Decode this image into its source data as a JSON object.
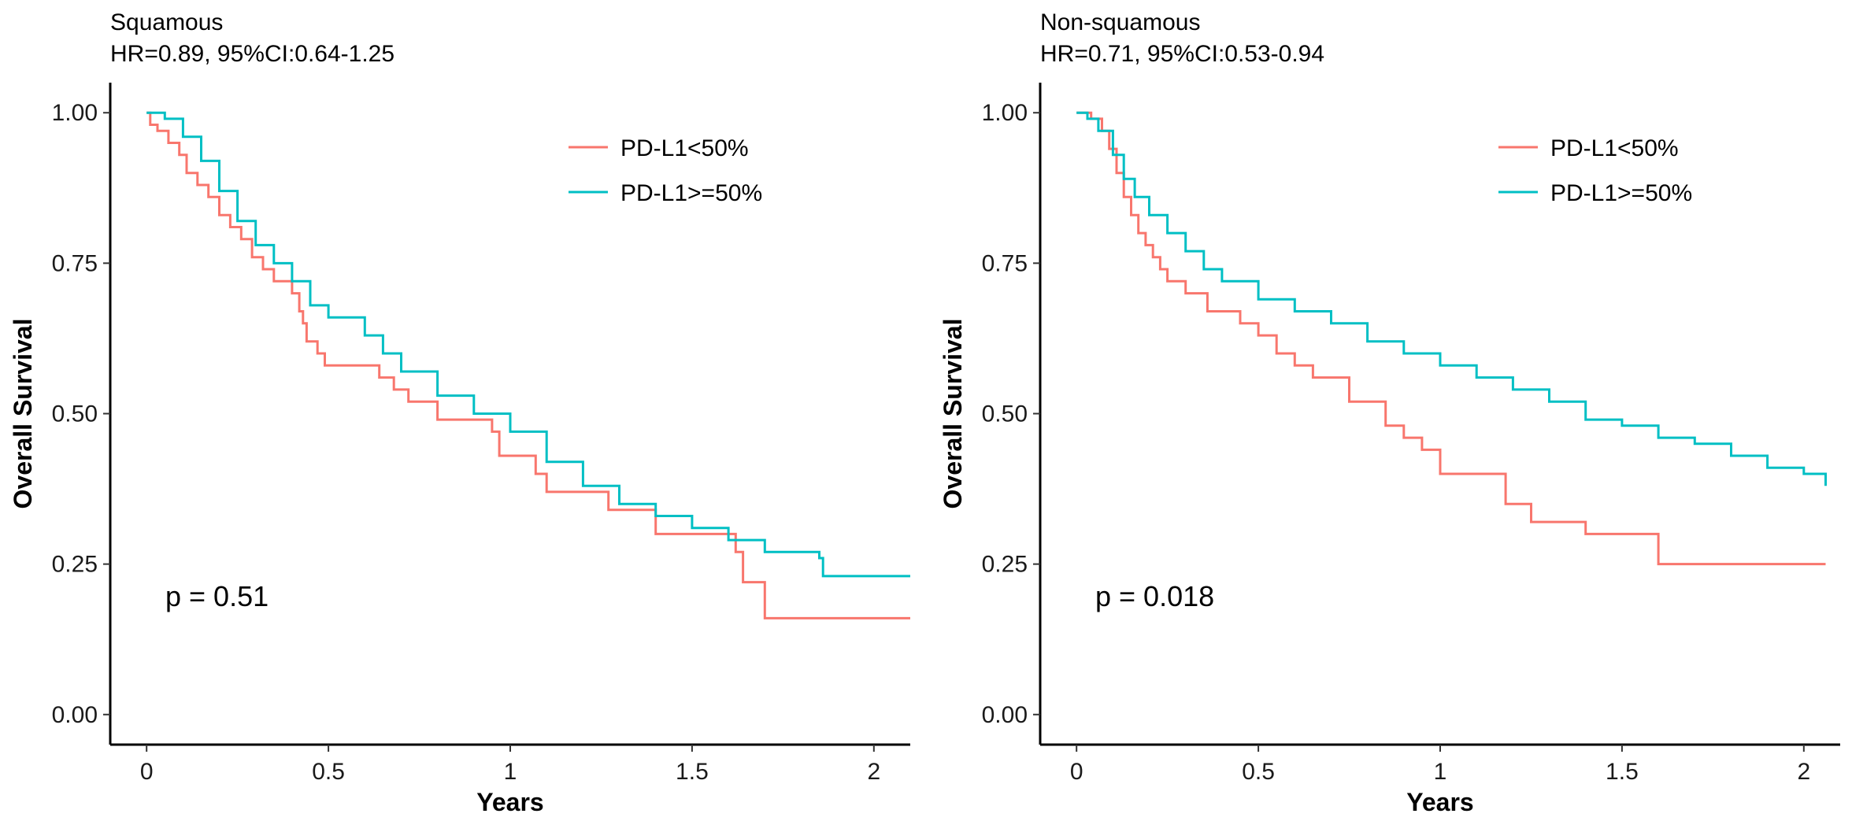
{
  "chart_data": [
    {
      "type": "line",
      "subtype": "kaplan-meier",
      "title": "Squamous",
      "subtitle": "HR=0.89, 95%CI:0.64-1.25",
      "xlabel": "Years",
      "ylabel": "Overall Survival",
      "xlim": [
        -0.1,
        2.1
      ],
      "ylim": [
        -0.05,
        1.05
      ],
      "xticks": [
        0,
        0.5,
        1,
        1.5,
        2
      ],
      "xtick_labels": [
        "0",
        "0.5",
        "1",
        "1.5",
        "2"
      ],
      "yticks": [
        0,
        0.25,
        0.5,
        0.75,
        1.0
      ],
      "ytick_labels": [
        "0.00",
        "0.25",
        "0.50",
        "0.75",
        "1.00"
      ],
      "grid": false,
      "legend_position": "top-right",
      "annotation": "p = 0.51",
      "series": [
        {
          "name": "PD-L1<50%",
          "color": "#F8766D",
          "x": [
            0,
            0.01,
            0.03,
            0.06,
            0.09,
            0.11,
            0.14,
            0.17,
            0.2,
            0.23,
            0.26,
            0.29,
            0.32,
            0.35,
            0.4,
            0.42,
            0.43,
            0.44,
            0.47,
            0.49,
            0.52,
            0.64,
            0.68,
            0.72,
            0.8,
            0.95,
            0.97,
            1.07,
            1.1,
            1.22,
            1.27,
            1.4,
            1.62,
            1.64,
            1.7,
            2.1
          ],
          "y": [
            1.0,
            0.98,
            0.97,
            0.95,
            0.93,
            0.9,
            0.88,
            0.86,
            0.83,
            0.81,
            0.79,
            0.76,
            0.74,
            0.72,
            0.7,
            0.67,
            0.65,
            0.62,
            0.6,
            0.58,
            0.58,
            0.56,
            0.54,
            0.52,
            0.49,
            0.47,
            0.43,
            0.4,
            0.37,
            0.37,
            0.34,
            0.3,
            0.27,
            0.22,
            0.16,
            0.16
          ]
        },
        {
          "name": "PD-L1>=50%",
          "color": "#00BFC4",
          "x": [
            0,
            0.05,
            0.1,
            0.15,
            0.2,
            0.25,
            0.3,
            0.35,
            0.4,
            0.45,
            0.5,
            0.6,
            0.65,
            0.7,
            0.8,
            0.9,
            1.0,
            1.1,
            1.2,
            1.3,
            1.4,
            1.5,
            1.6,
            1.7,
            1.8,
            1.85,
            1.86,
            2.1
          ],
          "y": [
            1.0,
            0.99,
            0.96,
            0.92,
            0.87,
            0.82,
            0.78,
            0.75,
            0.72,
            0.68,
            0.66,
            0.63,
            0.6,
            0.57,
            0.53,
            0.5,
            0.47,
            0.42,
            0.38,
            0.35,
            0.33,
            0.31,
            0.29,
            0.27,
            0.27,
            0.26,
            0.23,
            0.23
          ]
        }
      ]
    },
    {
      "type": "line",
      "subtype": "kaplan-meier",
      "title": "Non-squamous",
      "subtitle": "HR=0.71, 95%CI:0.53-0.94",
      "xlabel": "Years",
      "ylabel": "Overall Survival",
      "xlim": [
        -0.1,
        2.1
      ],
      "ylim": [
        -0.05,
        1.05
      ],
      "xticks": [
        0,
        0.5,
        1,
        1.5,
        2
      ],
      "xtick_labels": [
        "0",
        "0.5",
        "1",
        "1.5",
        "2"
      ],
      "yticks": [
        0,
        0.25,
        0.5,
        0.75,
        1.0
      ],
      "ytick_labels": [
        "0.00",
        "0.25",
        "0.50",
        "0.75",
        "1.00"
      ],
      "grid": false,
      "legend_position": "top-right",
      "annotation": "p = 0.018",
      "series": [
        {
          "name": "PD-L1<50%",
          "color": "#F8766D",
          "x": [
            0,
            0.04,
            0.07,
            0.09,
            0.11,
            0.13,
            0.15,
            0.17,
            0.19,
            0.21,
            0.23,
            0.25,
            0.3,
            0.36,
            0.45,
            0.5,
            0.55,
            0.6,
            0.65,
            0.75,
            0.85,
            0.9,
            0.95,
            1.0,
            1.18,
            1.25,
            1.4,
            1.6,
            2.06
          ],
          "y": [
            1.0,
            0.99,
            0.97,
            0.94,
            0.9,
            0.86,
            0.83,
            0.8,
            0.78,
            0.76,
            0.74,
            0.72,
            0.7,
            0.67,
            0.65,
            0.63,
            0.6,
            0.58,
            0.56,
            0.52,
            0.48,
            0.46,
            0.44,
            0.4,
            0.35,
            0.32,
            0.3,
            0.25,
            0.25
          ]
        },
        {
          "name": "PD-L1>=50%",
          "color": "#00BFC4",
          "x": [
            0,
            0.03,
            0.06,
            0.1,
            0.13,
            0.16,
            0.2,
            0.25,
            0.3,
            0.35,
            0.4,
            0.5,
            0.6,
            0.7,
            0.8,
            0.9,
            1.0,
            1.1,
            1.2,
            1.3,
            1.4,
            1.5,
            1.6,
            1.7,
            1.8,
            1.9,
            2.0,
            2.06
          ],
          "y": [
            1.0,
            0.99,
            0.97,
            0.93,
            0.89,
            0.86,
            0.83,
            0.8,
            0.77,
            0.74,
            0.72,
            0.69,
            0.67,
            0.65,
            0.62,
            0.6,
            0.58,
            0.56,
            0.54,
            0.52,
            0.49,
            0.48,
            0.46,
            0.45,
            0.43,
            0.41,
            0.4,
            0.38
          ]
        }
      ]
    }
  ]
}
